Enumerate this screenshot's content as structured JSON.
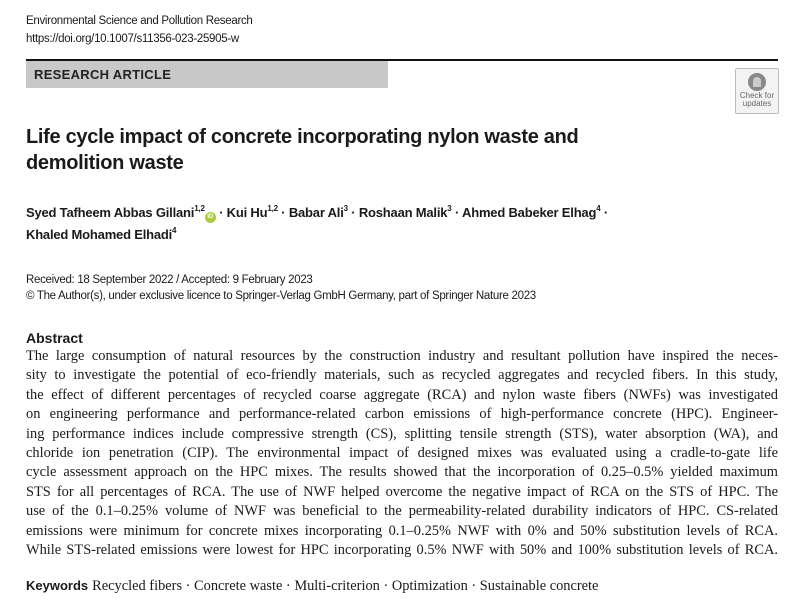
{
  "header": {
    "journal": "Environmental Science and Pollution Research",
    "doi": "https://doi.org/10.1007/s11356-023-25905-w"
  },
  "article_type": "RESEARCH ARTICLE",
  "badge": {
    "icon": "check-for-updates-icon",
    "line1": "Check for",
    "line2": "updates"
  },
  "title": "Life cycle impact of concrete incorporating nylon waste and demolition waste",
  "authors": [
    {
      "name": "Syed Tafheem Abbas Gillani",
      "aff": "1,2",
      "orcid": true
    },
    {
      "name": "Kui Hu",
      "aff": "1,2"
    },
    {
      "name": "Babar Ali",
      "aff": "3"
    },
    {
      "name": "Roshaan Malik",
      "aff": "3"
    },
    {
      "name": "Ahmed Babeker Elhag",
      "aff": "4"
    },
    {
      "name": "Khaled Mohamed Elhadi",
      "aff": "4"
    }
  ],
  "orcid_label": "iD",
  "separator": " · ",
  "dates": "Received: 18 September 2022 / Accepted: 9 February 2023",
  "copyright": "© The Author(s), under exclusive licence to Springer-Verlag GmbH Germany, part of Springer Nature 2023",
  "abstract": {
    "heading": "Abstract",
    "lines": [
      "The large consumption of natural resources by the construction industry and resultant pollution have inspired the neces-",
      "sity to investigate the potential of eco-friendly materials, such as recycled aggregates and recycled fibers. In this study,",
      "the effect of different percentages of recycled coarse aggregate (RCA) and nylon waste fibers (NWFs) was investigated",
      "on engineering performance and performance-related carbon emissions of high-performance concrete (HPC). Engineer-",
      "ing performance indices include compressive strength (CS), splitting tensile strength (STS), water absorption (WA), and",
      "chloride ion penetration (CIP). The environmental impact of designed mixes was evaluated using a cradle-to-gate life",
      "cycle assessment approach on the HPC mixes. The results showed that the incorporation of 0.25–0.5% yielded maximum",
      "STS for all percentages of RCA. The use of NWF helped overcome the negative impact of RCA on the STS of HPC. The",
      "use of the 0.1–0.25% volume of NWF was beneficial to the permeability-related durability indicators of HPC. CS-related",
      "emissions were minimum for concrete mixes incorporating 0.1–0.25% NWF with 0% and 50% substitution levels of RCA.",
      "While STS-related emissions were lowest for HPC incorporating 0.5% NWF with 50% and 100% substitution levels of RCA."
    ]
  },
  "keywords": {
    "label": "Keywords",
    "text": "Recycled fibers · Concrete waste · Multi-criterion · Optimization · Sustainable concrete"
  }
}
